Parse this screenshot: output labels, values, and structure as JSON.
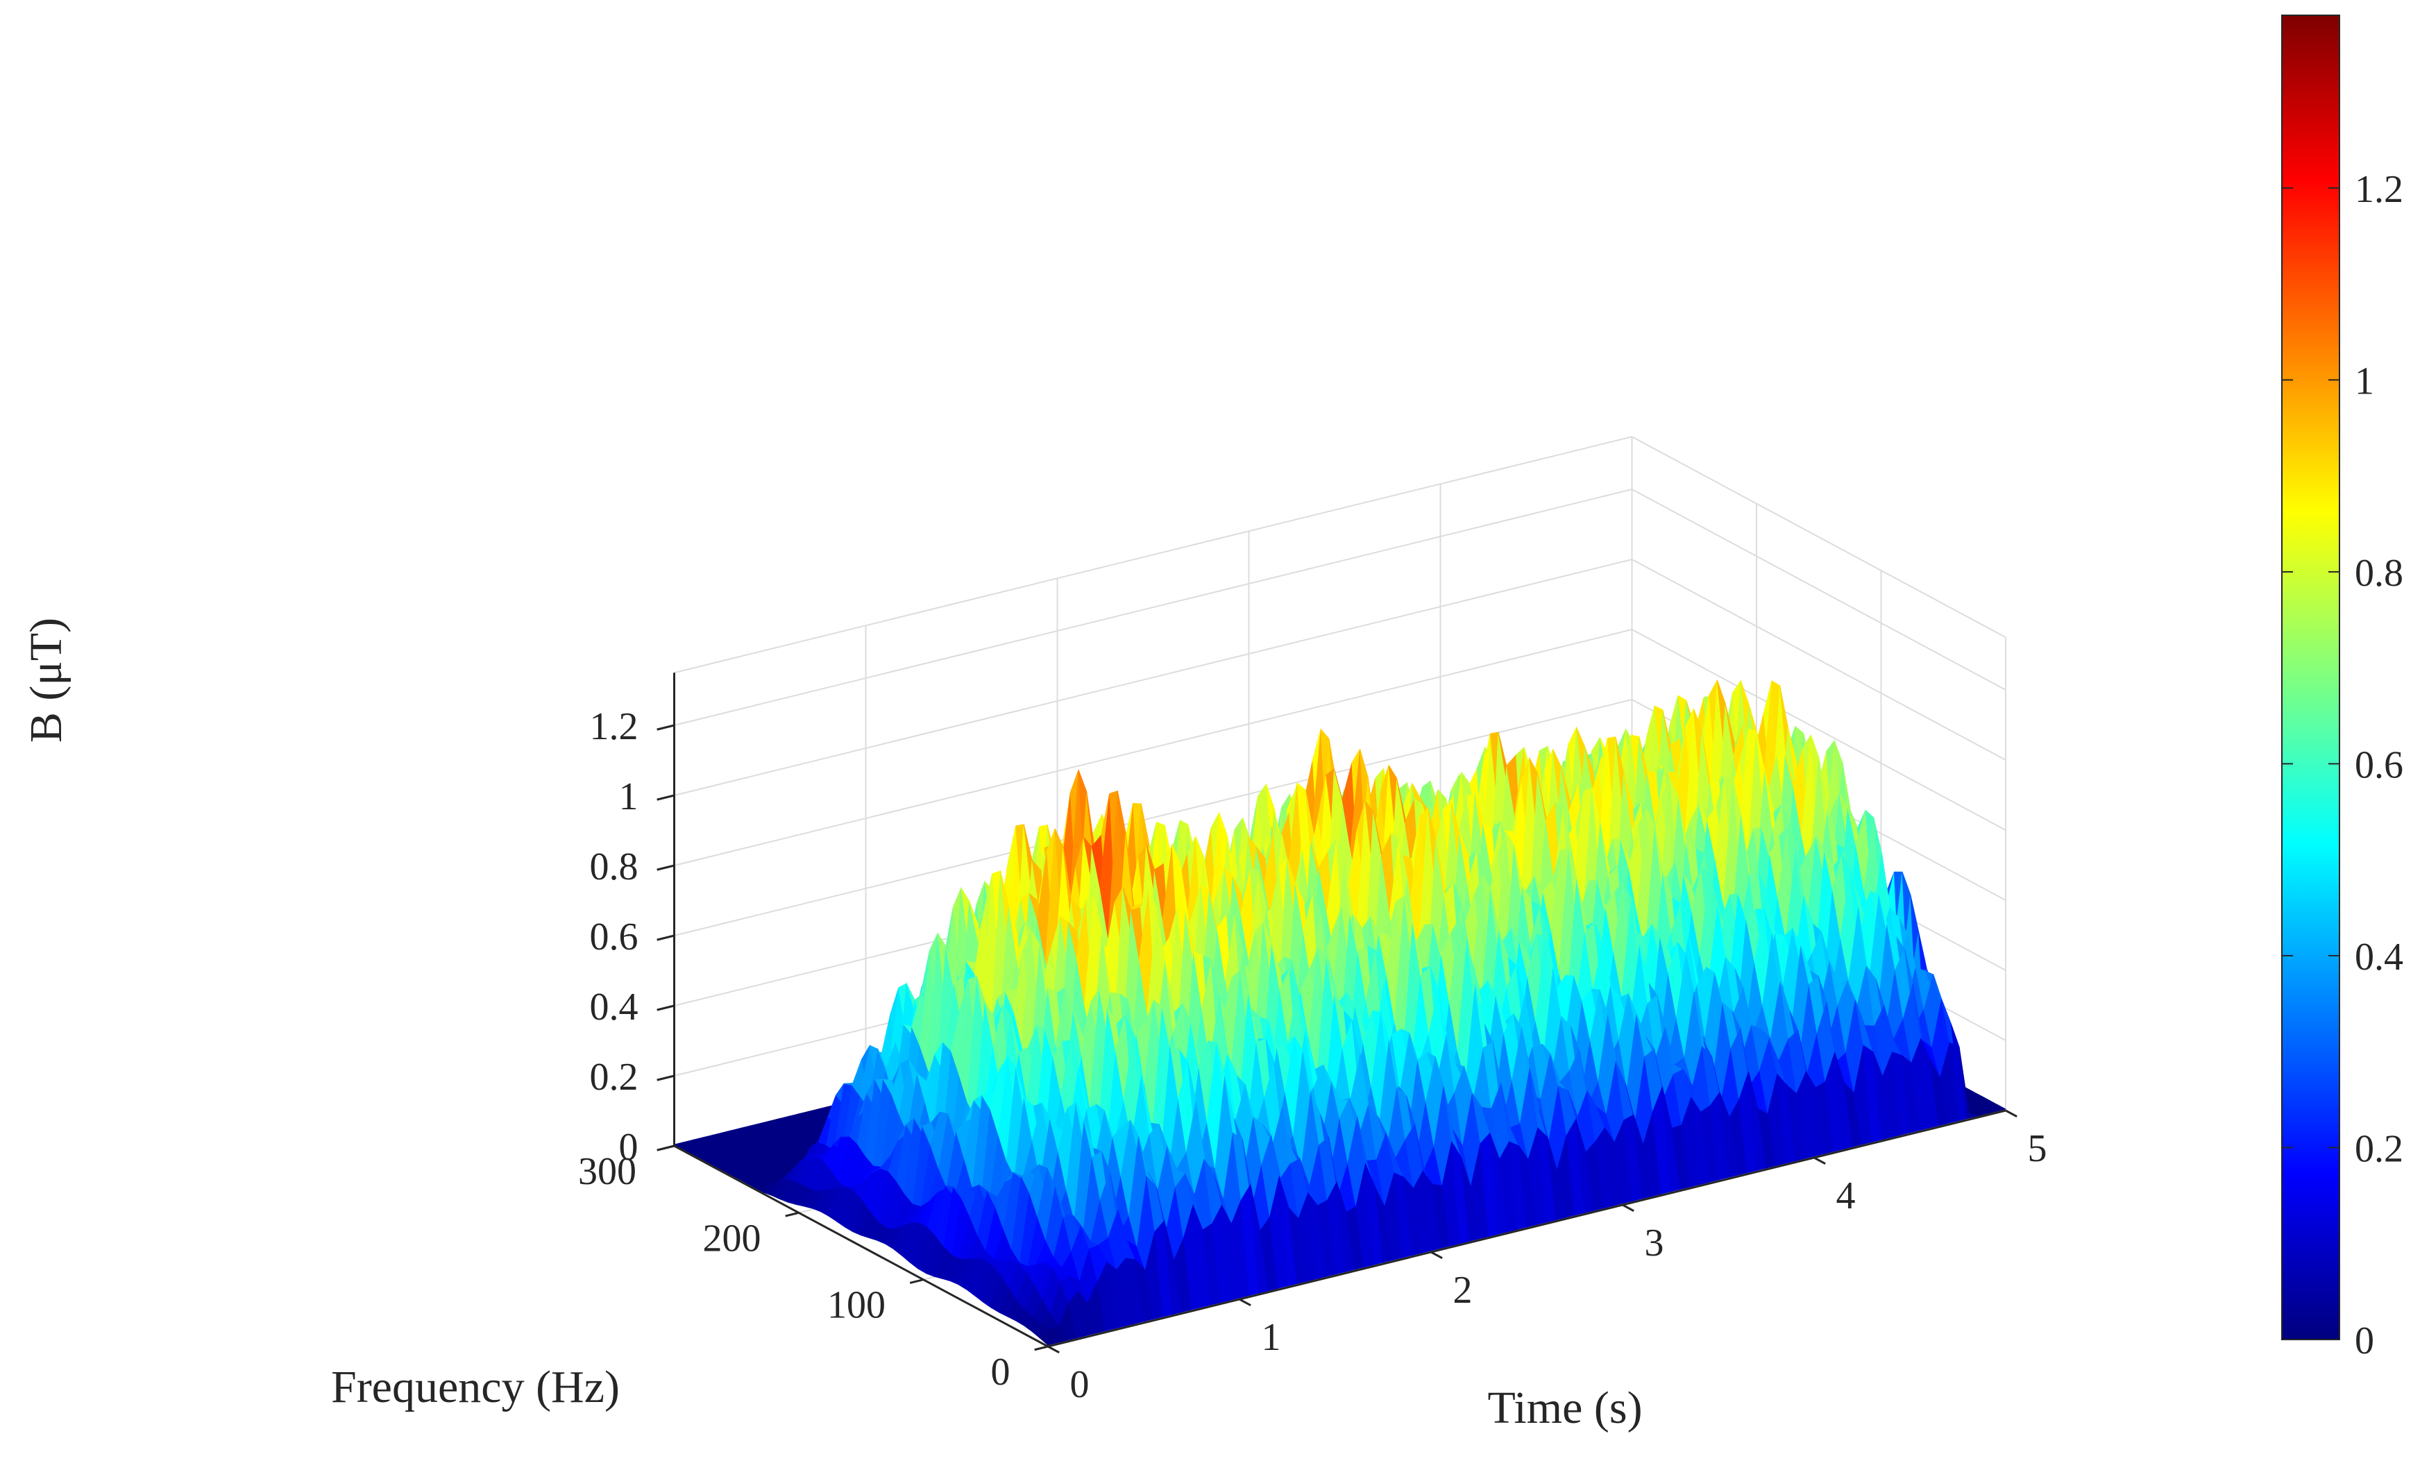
{
  "chart_data": {
    "type": "surface",
    "title": "",
    "xlabel": "Time (s)",
    "ylabel": "Frequency (Hz)",
    "zlabel": "B (μT)",
    "xlim": [
      0,
      5
    ],
    "ylim": [
      0,
      300
    ],
    "zlim": [
      0,
      1.35
    ],
    "x_ticks": [
      0,
      1,
      2,
      3,
      4,
      5
    ],
    "y_ticks": [
      0,
      100,
      200,
      300
    ],
    "z_ticks": [
      0,
      0.2,
      0.4,
      0.6,
      0.8,
      1.0,
      1.2
    ],
    "x_tick_labels": [
      "0",
      "1",
      "2",
      "3",
      "4",
      "5"
    ],
    "y_tick_labels": [
      "0",
      "100",
      "200",
      "300"
    ],
    "z_tick_labels": [
      "0",
      "0.2",
      "0.4",
      "0.6",
      "0.8",
      "1",
      "1.2"
    ],
    "grid": true,
    "colormap": "jet",
    "colorbar": {
      "placement": "right",
      "range": [
        0,
        1.38
      ],
      "ticks": [
        0,
        0.2,
        0.4,
        0.6,
        0.8,
        1.0,
        1.2
      ],
      "tick_labels": [
        "0",
        "0.2",
        "0.4",
        "0.6",
        "0.8",
        "1",
        "1.2"
      ]
    },
    "active_frequency_band_hz": [
      0,
      230
    ],
    "peak_profile_vs_time": {
      "time_s": [
        0.0,
        0.2,
        0.4,
        0.5,
        0.6,
        0.8,
        1.0,
        1.2,
        1.4,
        1.6,
        1.8,
        2.0,
        2.2,
        2.4,
        2.6,
        2.8,
        3.0,
        3.2,
        3.4,
        3.6,
        3.8,
        4.0,
        4.2,
        4.4,
        4.6,
        4.8,
        4.85,
        5.0
      ],
      "peak_B_uT": [
        0.05,
        0.5,
        0.9,
        0.85,
        1.05,
        1.15,
        1.3,
        1.2,
        1.1,
        1.05,
        1.1,
        1.0,
        1.15,
        1.25,
        1.1,
        1.05,
        1.0,
        1.15,
        1.05,
        1.1,
        1.0,
        1.1,
        1.05,
        1.15,
        1.05,
        0.85,
        0.02,
        0.0
      ]
    }
  }
}
